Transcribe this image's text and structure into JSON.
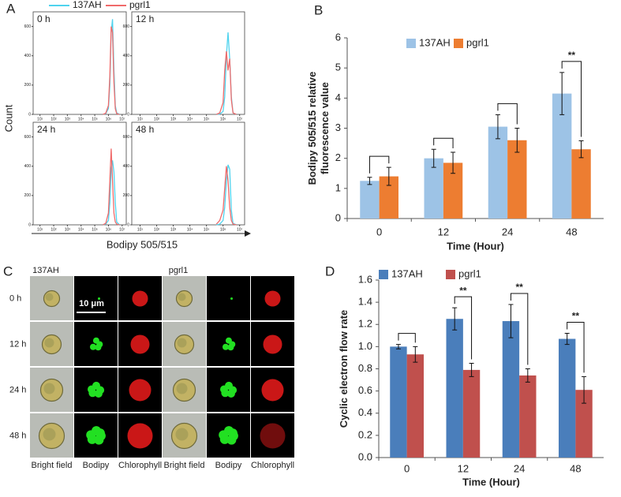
{
  "chart_data": [
    {
      "type": "line",
      "panel": "A",
      "xlabel": "Bodipy 505/515",
      "ylabel": "Count",
      "series": [
        {
          "name": "137AH",
          "color": "#4fd3ee"
        },
        {
          "name": "pgrl1",
          "color": "#f06a6a"
        }
      ],
      "xlim": [
        0.5,
        7.3
      ],
      "xticks": [
        {
          "value": 1,
          "label": "10¹"
        },
        {
          "value": 2,
          "label": "10²"
        },
        {
          "value": 3,
          "label": "10³"
        },
        {
          "value": 4,
          "label": "10⁴"
        },
        {
          "value": 5,
          "label": "10⁵"
        },
        {
          "value": 6,
          "label": "10⁶"
        },
        {
          "value": 7,
          "label": "10⁷"
        }
      ],
      "ylim": [
        0,
        700
      ],
      "yticks": [
        0,
        200,
        400,
        600
      ],
      "x": [
        5.6,
        5.8,
        6.0,
        6.1,
        6.2,
        6.3,
        6.4,
        6.5,
        6.6,
        6.8
      ],
      "subplots": [
        {
          "title": "0 h",
          "values": [
            [
              0,
              5,
              40,
              200,
              560,
              650,
              300,
              60,
              10,
              0
            ],
            [
              0,
              8,
              60,
              260,
              600,
              560,
              220,
              40,
              5,
              0
            ]
          ]
        },
        {
          "title": "12 h",
          "values": [
            [
              0,
              2,
              20,
              120,
              400,
              560,
              380,
              120,
              10,
              0
            ],
            [
              0,
              10,
              80,
              300,
              430,
              300,
              380,
              100,
              10,
              0
            ]
          ]
        },
        {
          "title": "24 h",
          "values": [
            [
              0,
              5,
              30,
              150,
              380,
              440,
              360,
              150,
              20,
              0
            ],
            [
              0,
              10,
              80,
              300,
              520,
              300,
              80,
              20,
              5,
              0
            ]
          ]
        },
        {
          "title": "48 h",
          "values": [
            [
              0,
              5,
              30,
              120,
              300,
              410,
              380,
              100,
              10,
              0
            ],
            [
              5,
              30,
              100,
              250,
              400,
              300,
              120,
              30,
              5,
              0
            ]
          ]
        }
      ]
    },
    {
      "type": "bar",
      "panel": "B",
      "xlabel": "Time (Hour)",
      "ylabel": [
        "Bodipy 505/515 relative",
        "fluorescence value"
      ],
      "categories": [
        "0",
        "12",
        "24",
        "48"
      ],
      "ylim": [
        0,
        6
      ],
      "yticks": [
        0,
        1,
        2,
        3,
        4,
        5,
        6
      ],
      "series": [
        {
          "name": "137AH",
          "color": "#9dc3e6",
          "values": [
            1.25,
            2.0,
            3.05,
            4.15
          ],
          "errors": [
            0.12,
            0.3,
            0.4,
            0.7
          ]
        },
        {
          "name": "pgrl1",
          "color": "#ed7d31",
          "values": [
            1.4,
            1.85,
            2.6,
            2.3
          ],
          "errors": [
            0.3,
            0.35,
            0.4,
            0.28
          ]
        }
      ],
      "significance": [
        null,
        null,
        null,
        "**"
      ]
    },
    {
      "type": "bar",
      "panel": "D",
      "xlabel": "Time (Hour)",
      "ylabel": [
        "Cyclic electron flow rate"
      ],
      "categories": [
        "0",
        "12",
        "24",
        "48"
      ],
      "ylim": [
        0,
        1.6
      ],
      "yticks": [
        {
          "value": 0,
          "label": "0.0"
        },
        0.2,
        0.4,
        0.6,
        0.8,
        {
          "value": 1,
          "label": "1.0"
        },
        1.2,
        1.4,
        1.6
      ],
      "series": [
        {
          "name": "137AH",
          "color": "#4a7ebb",
          "values": [
            1.0,
            1.25,
            1.23,
            1.07
          ],
          "errors": [
            0.02,
            0.1,
            0.15,
            0.05
          ]
        },
        {
          "name": "pgrl1",
          "color": "#c0504d",
          "values": [
            0.93,
            0.79,
            0.74,
            0.61
          ],
          "errors": [
            0.07,
            0.06,
            0.06,
            0.12
          ]
        }
      ],
      "significance": [
        null,
        "**",
        "**",
        "**"
      ]
    }
  ],
  "panel_c": {
    "panel": "C",
    "strains": [
      "137AH",
      "pgrl1"
    ],
    "rows": [
      "0 h",
      "12 h",
      "24 h",
      "48 h"
    ],
    "columns": [
      "Bright field",
      "Bodipy",
      "Chlorophyll"
    ],
    "scale_bar": "10 μm"
  }
}
